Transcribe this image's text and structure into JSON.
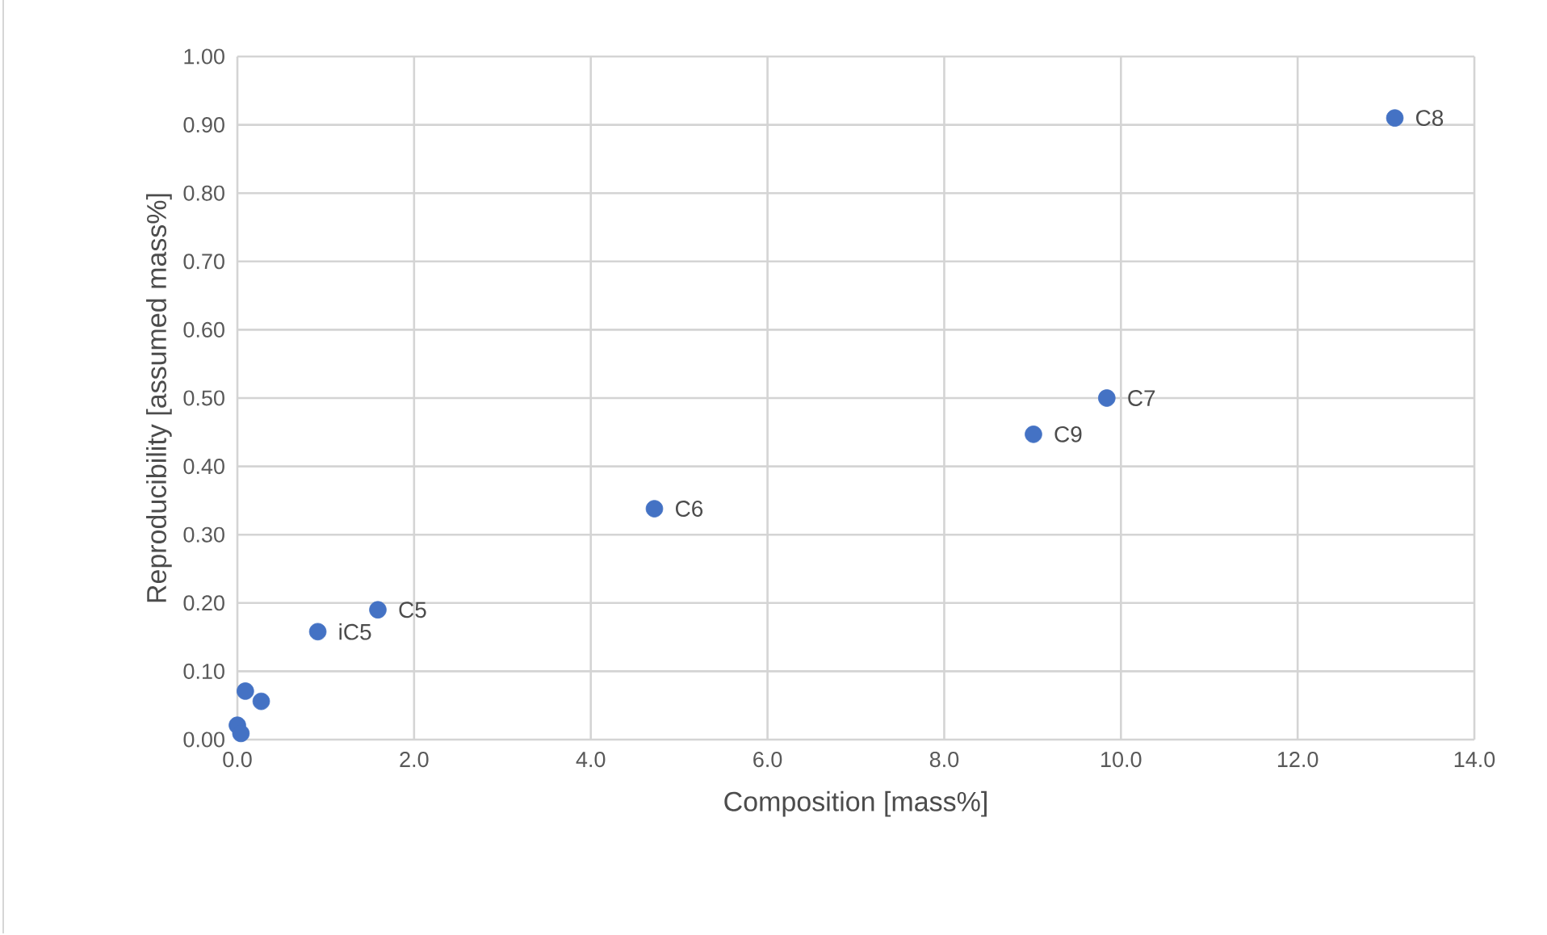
{
  "chart_data": {
    "type": "scatter",
    "xlabel": "Composition [mass%]",
    "ylabel": "Reproducibility [assumed mass%]",
    "series": [
      {
        "color": "#4472c4",
        "x": [
          13.1,
          9.84,
          9.01,
          4.72,
          1.59,
          0.91,
          0.09,
          0.27,
          0.0,
          0.04
        ],
        "values": [
          0.91,
          0.5,
          0.447,
          0.338,
          0.19,
          0.158,
          0.071,
          0.056,
          0.021,
          0.009
        ]
      }
    ],
    "grid": true,
    "xlim": [
      0,
      14
    ],
    "ylim": [
      0,
      1
    ],
    "xticks": [
      {
        "value": 0,
        "label": "0.0"
      },
      {
        "value": 2,
        "label": "2.0"
      },
      {
        "value": 4,
        "label": "4.0"
      },
      {
        "value": 6,
        "label": "6.0"
      },
      {
        "value": 8,
        "label": "8.0"
      },
      {
        "value": 10,
        "label": "10.0"
      },
      {
        "value": 12,
        "label": "12.0"
      },
      {
        "value": 14,
        "label": "14.0"
      }
    ],
    "yticks": [
      {
        "value": 0,
        "label": "0.00"
      },
      {
        "value": 0.1,
        "label": "0.10"
      },
      {
        "value": 0.2,
        "label": "0.20"
      },
      {
        "value": 0.3,
        "label": "0.30"
      },
      {
        "value": 0.4,
        "label": "0.40"
      },
      {
        "value": 0.5,
        "label": "0.50"
      },
      {
        "value": 0.6,
        "label": "0.60"
      },
      {
        "value": 0.7,
        "label": "0.70"
      },
      {
        "value": 0.8,
        "label": "0.80"
      },
      {
        "value": 0.9,
        "label": "0.90"
      },
      {
        "value": 1,
        "label": "1.00"
      }
    ],
    "annotations": [
      {
        "text": "C8",
        "x": 13.1,
        "y": 0.91
      },
      {
        "text": "C7",
        "x": 9.84,
        "y": 0.5
      },
      {
        "text": "C9",
        "x": 9.01,
        "y": 0.447
      },
      {
        "text": "C6",
        "x": 4.72,
        "y": 0.338
      },
      {
        "text": "C5",
        "x": 1.59,
        "y": 0.19
      },
      {
        "text": "iC5",
        "x": 0.91,
        "y": 0.158
      }
    ]
  }
}
